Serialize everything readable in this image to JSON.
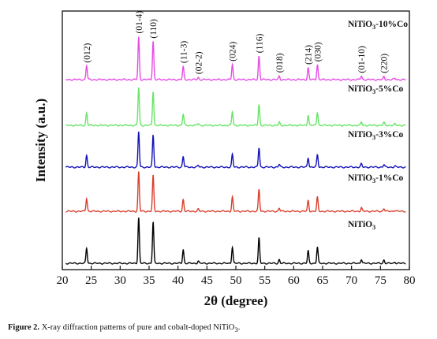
{
  "chart_data": {
    "type": "line",
    "xlabel": "2θ (degree)",
    "ylabel": "Intensity (a.u.)",
    "xlim": [
      20,
      80
    ],
    "xticks": [
      20,
      25,
      30,
      35,
      40,
      45,
      50,
      55,
      60,
      65,
      70,
      75,
      80
    ],
    "y_ticks_shown": false,
    "grid": false,
    "legend": "none",
    "series": [
      {
        "name": "NiTiO₃",
        "sub": "3",
        "color": "#000000"
      },
      {
        "name": "NiTiO₃-1%Co",
        "sub": "3",
        "color": "#d93f2c"
      },
      {
        "name": "NiTiO₃-3%Co",
        "sub": "3",
        "color": "#1212b8"
      },
      {
        "name": "NiTiO₃-5%Co",
        "sub": "3",
        "color": "#66e566"
      },
      {
        "name": "NiTiO₃-10%Co",
        "sub": "3",
        "color": "#e64ce6"
      }
    ],
    "peaks": [
      {
        "x": 24.2,
        "rel": 0.33,
        "label": "(012)"
      },
      {
        "x": 33.2,
        "rel": 1.0,
        "label": "(01-4)"
      },
      {
        "x": 35.7,
        "rel": 0.9,
        "label": "(110)"
      },
      {
        "x": 40.9,
        "rel": 0.3,
        "label": "(11-3)"
      },
      {
        "x": 43.5,
        "rel": 0.05,
        "label": "(02-2)"
      },
      {
        "x": 49.4,
        "rel": 0.36,
        "label": "(024)"
      },
      {
        "x": 54.0,
        "rel": 0.55,
        "label": "(116)"
      },
      {
        "x": 57.5,
        "rel": 0.08,
        "label": "(018)"
      },
      {
        "x": 62.5,
        "rel": 0.27,
        "label": "(214)"
      },
      {
        "x": 64.1,
        "rel": 0.35,
        "label": "(030)"
      },
      {
        "x": 71.7,
        "rel": 0.09,
        "label": "(01-10)"
      },
      {
        "x": 75.6,
        "rel": 0.07,
        "label": "(220)"
      },
      {
        "x": 77.5,
        "rel": 0.03,
        "label": ""
      }
    ]
  },
  "caption": {
    "figure_label": "Figure 2.",
    "text_before_sub": " X-ray diffraction patterns of pure and cobalt-doped NiTiO",
    "sub": "3",
    "text_after_sub": "."
  }
}
